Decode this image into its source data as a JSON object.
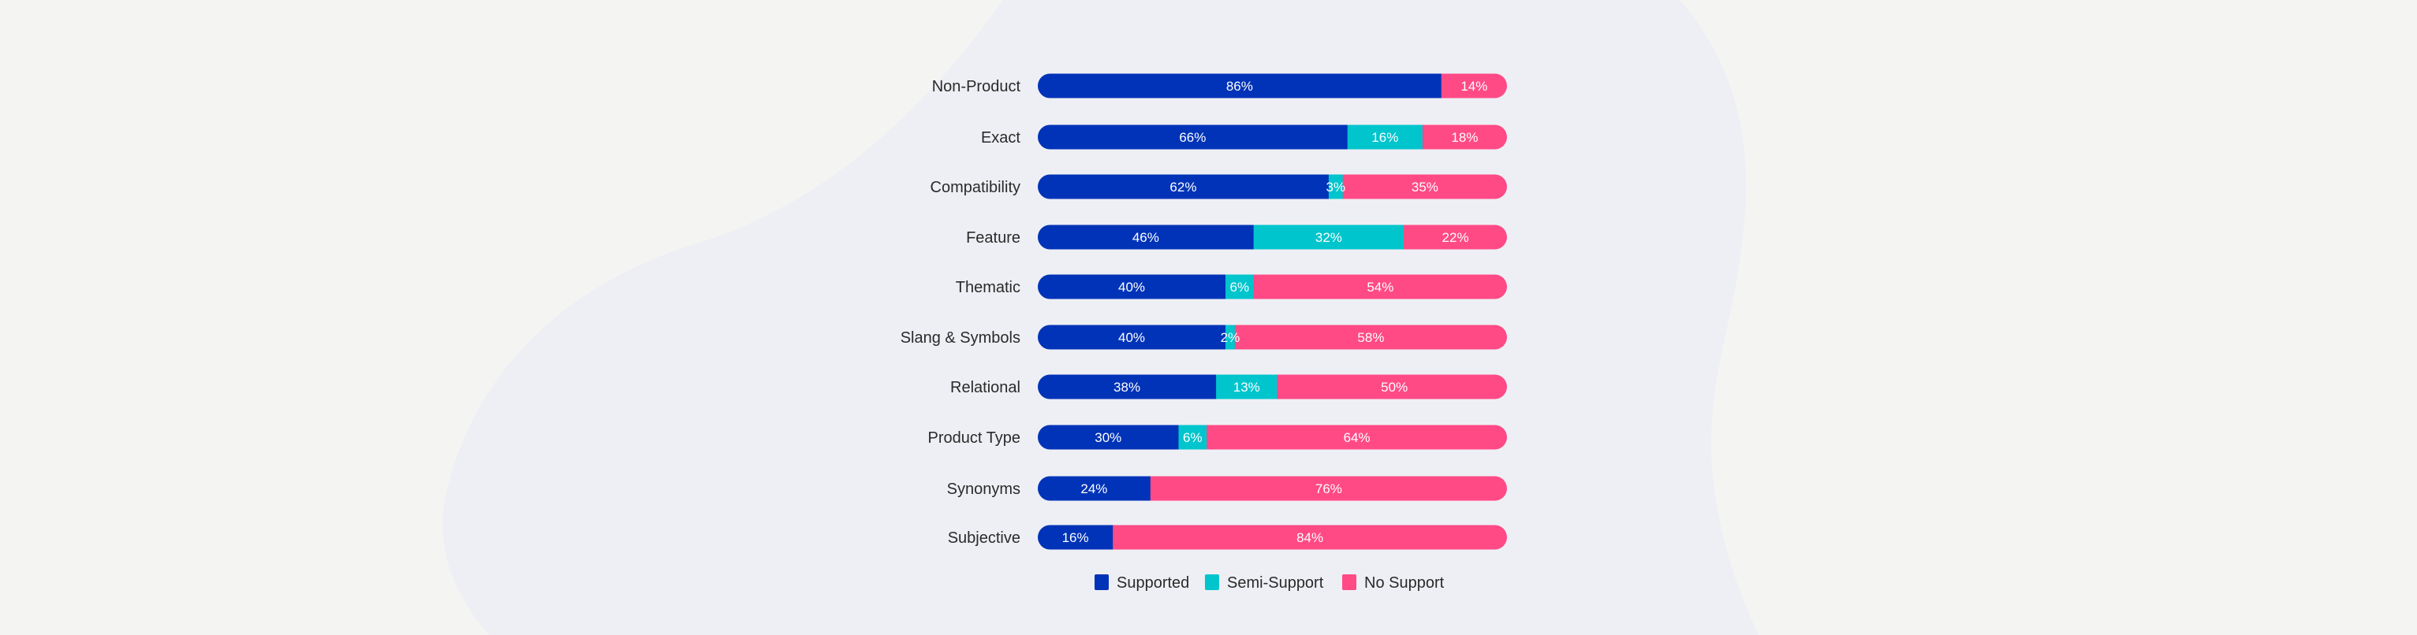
{
  "chart_data": {
    "type": "bar",
    "orientation": "horizontal",
    "stacked": true,
    "normalized": true,
    "categories": [
      "Non-Product",
      "Exact",
      "Compatibility",
      "Feature",
      "Thematic",
      "Slang & Symbols",
      "Relational",
      "Product Type",
      "Synonyms",
      "Subjective"
    ],
    "series": [
      {
        "name": "Supported",
        "color": "#0033b8",
        "values": [
          86,
          66,
          62,
          46,
          40,
          40,
          38,
          30,
          24,
          16
        ]
      },
      {
        "name": "Semi-Support",
        "color": "#00c5cd",
        "values": [
          0,
          16,
          3,
          32,
          6,
          2,
          13,
          6,
          0,
          0
        ]
      },
      {
        "name": "No Support",
        "color": "#ff4a86",
        "values": [
          14,
          18,
          35,
          22,
          54,
          58,
          50,
          64,
          76,
          84
        ]
      }
    ],
    "value_format": "{v}%",
    "xlim": [
      0,
      100
    ],
    "grid": false,
    "legend_position": "bottom"
  },
  "colors": {
    "background": "#f4f4f3",
    "blob": "#eeeff4"
  }
}
